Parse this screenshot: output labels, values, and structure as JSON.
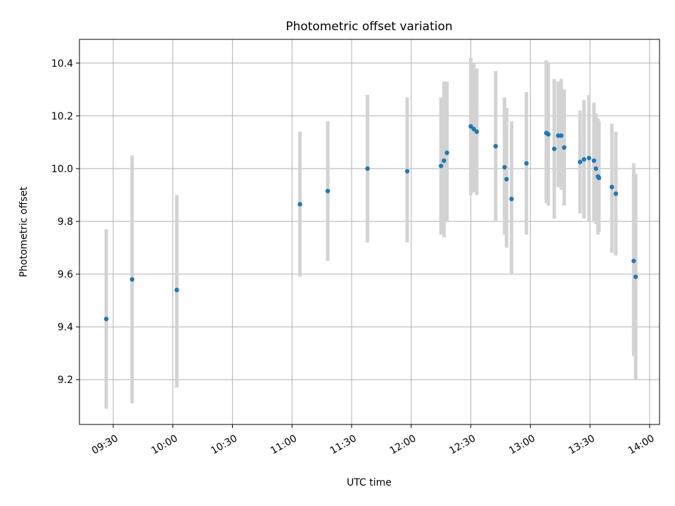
{
  "chart_data": {
    "type": "scatter",
    "title": "Photometric offset variation",
    "xlabel": "UTC time",
    "ylabel": "Photometric offset",
    "xlim": [
      "09:13",
      "14:05"
    ],
    "ylim": [
      9.03,
      10.49
    ],
    "grid": true,
    "x_ticks": [
      "09:30",
      "10:00",
      "10:30",
      "11:00",
      "11:30",
      "12:00",
      "12:30",
      "13:00",
      "13:30",
      "14:00"
    ],
    "y_ticks": [
      "9.2",
      "9.4",
      "9.6",
      "9.8",
      "10.0",
      "10.2",
      "10.4"
    ],
    "colors": {
      "points": "#1f77b4",
      "errorbars": "#d3d3d3",
      "grid": "#b0b0b0",
      "axes": "#000000"
    },
    "series": [
      {
        "name": "offset",
        "points": [
          {
            "t": "09:26.5",
            "y": 9.43,
            "lo": 9.09,
            "hi": 9.77
          },
          {
            "t": "09:39.5",
            "y": 9.58,
            "lo": 9.11,
            "hi": 10.05
          },
          {
            "t": "10:02",
            "y": 9.54,
            "lo": 9.17,
            "hi": 9.9
          },
          {
            "t": "11:04",
            "y": 9.865,
            "lo": 9.59,
            "hi": 10.14
          },
          {
            "t": "11:18",
            "y": 9.915,
            "lo": 9.65,
            "hi": 10.18
          },
          {
            "t": "11:38",
            "y": 10.0,
            "lo": 9.72,
            "hi": 10.28
          },
          {
            "t": "11:58",
            "y": 9.99,
            "lo": 9.72,
            "hi": 10.27
          },
          {
            "t": "12:15",
            "y": 10.01,
            "lo": 9.75,
            "hi": 10.27
          },
          {
            "t": "12:16.5",
            "y": 10.03,
            "lo": 9.74,
            "hi": 10.33
          },
          {
            "t": "12:18",
            "y": 10.06,
            "lo": 9.8,
            "hi": 10.33
          },
          {
            "t": "12:30",
            "y": 10.16,
            "lo": 9.9,
            "hi": 10.42
          },
          {
            "t": "12:31.5",
            "y": 10.15,
            "lo": 9.91,
            "hi": 10.4
          },
          {
            "t": "12:33",
            "y": 10.14,
            "lo": 9.9,
            "hi": 10.38
          },
          {
            "t": "12:42.5",
            "y": 10.085,
            "lo": 9.8,
            "hi": 10.37
          },
          {
            "t": "12:47",
            "y": 10.005,
            "lo": 9.75,
            "hi": 10.27
          },
          {
            "t": "12:48",
            "y": 9.96,
            "lo": 9.7,
            "hi": 10.23
          },
          {
            "t": "12:50.5",
            "y": 9.885,
            "lo": 9.6,
            "hi": 10.18
          },
          {
            "t": "12:58",
            "y": 10.02,
            "lo": 9.75,
            "hi": 10.29
          },
          {
            "t": "13:08",
            "y": 10.135,
            "lo": 9.87,
            "hi": 10.41
          },
          {
            "t": "13:09",
            "y": 10.13,
            "lo": 9.86,
            "hi": 10.4
          },
          {
            "t": "13:12",
            "y": 10.075,
            "lo": 9.81,
            "hi": 10.34
          },
          {
            "t": "13:14",
            "y": 10.125,
            "lo": 9.93,
            "hi": 10.33
          },
          {
            "t": "13:15.5",
            "y": 10.125,
            "lo": 9.92,
            "hi": 10.34
          },
          {
            "t": "13:17",
            "y": 10.08,
            "lo": 9.86,
            "hi": 10.3
          },
          {
            "t": "13:25",
            "y": 10.025,
            "lo": 9.83,
            "hi": 10.22
          },
          {
            "t": "13:27",
            "y": 10.035,
            "lo": 9.81,
            "hi": 10.26
          },
          {
            "t": "13:29.5",
            "y": 10.04,
            "lo": 9.8,
            "hi": 10.28
          },
          {
            "t": "13:32",
            "y": 10.03,
            "lo": 9.8,
            "hi": 10.25
          },
          {
            "t": "13:33",
            "y": 10.0,
            "lo": 9.79,
            "hi": 10.21
          },
          {
            "t": "13:34",
            "y": 9.97,
            "lo": 9.75,
            "hi": 10.19
          },
          {
            "t": "13:34.5",
            "y": 9.965,
            "lo": 9.76,
            "hi": 10.18
          },
          {
            "t": "13:41",
            "y": 9.93,
            "lo": 9.68,
            "hi": 10.17
          },
          {
            "t": "13:43",
            "y": 9.905,
            "lo": 9.67,
            "hi": 10.14
          },
          {
            "t": "13:52",
            "y": 9.65,
            "lo": 9.29,
            "hi": 10.02
          },
          {
            "t": "13:53",
            "y": 9.59,
            "lo": 9.2,
            "hi": 9.98
          }
        ]
      }
    ]
  }
}
